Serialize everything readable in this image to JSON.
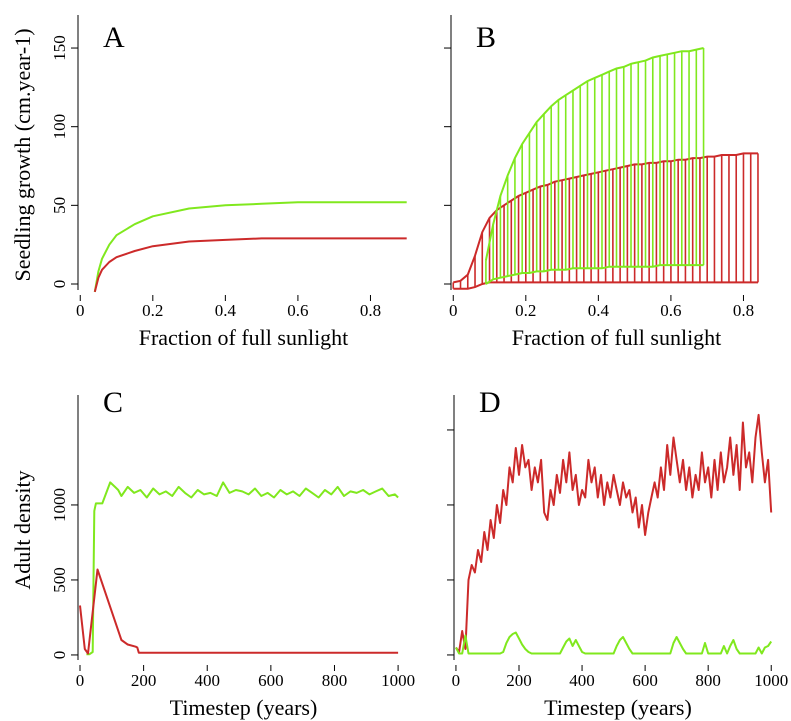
{
  "chart_data": [
    {
      "type": "line",
      "title": "A",
      "xlabel": "Fraction of full sunlight",
      "ylabel": "Seedling growth (cm.year-1)",
      "xlim": [
        -0.02,
        0.92
      ],
      "ylim": [
        -7,
        171
      ],
      "xticks": [
        0,
        0.2,
        0.4,
        0.6,
        0.8
      ],
      "yticks": [
        0,
        50,
        100,
        150
      ],
      "ytick_labels": true,
      "series": [
        {
          "color": "#80e81e",
          "x": [
            0.04,
            0.05,
            0.06,
            0.08,
            0.1,
            0.15,
            0.2,
            0.3,
            0.4,
            0.5,
            0.6,
            0.7,
            0.9
          ],
          "values": [
            -5,
            8,
            16,
            25,
            31,
            38,
            43,
            48,
            50,
            51,
            52,
            52,
            52
          ]
        },
        {
          "color": "#cc2a2a",
          "x": [
            0.04,
            0.05,
            0.06,
            0.08,
            0.1,
            0.15,
            0.2,
            0.3,
            0.4,
            0.5,
            0.6,
            0.7,
            0.9
          ],
          "values": [
            -5,
            4,
            9,
            14,
            17,
            21,
            24,
            27,
            28,
            29,
            29,
            29,
            29
          ]
        }
      ]
    },
    {
      "type": "hatched-band",
      "title": "B",
      "xlabel": "Fraction of full sunlight",
      "xlim": [
        -0.02,
        0.92
      ],
      "ylim": [
        -7,
        171
      ],
      "xticks": [
        0,
        0.2,
        0.4,
        0.6,
        0.8
      ],
      "yticks": [
        0,
        50,
        100,
        150
      ],
      "ytick_labels": false,
      "series": [
        {
          "color": "#cc2a2a",
          "x": [
            0,
            0.02,
            0.04,
            0.06,
            0.08,
            0.1,
            0.12,
            0.14,
            0.16,
            0.18,
            0.2,
            0.22,
            0.24,
            0.26,
            0.28,
            0.3,
            0.32,
            0.34,
            0.36,
            0.38,
            0.4,
            0.42,
            0.44,
            0.46,
            0.48,
            0.5,
            0.52,
            0.54,
            0.56,
            0.58,
            0.6,
            0.62,
            0.64,
            0.66,
            0.68,
            0.7,
            0.72,
            0.74,
            0.76,
            0.78,
            0.8,
            0.82,
            0.84
          ],
          "upper": [
            1,
            2,
            6,
            18,
            33,
            42,
            47,
            50,
            53,
            56,
            58,
            60,
            62,
            63,
            65,
            66,
            67,
            68,
            69,
            70,
            71,
            72,
            73,
            74,
            75,
            76,
            76,
            77,
            77,
            78,
            78,
            79,
            79,
            80,
            80,
            81,
            81,
            82,
            82,
            82,
            83,
            83,
            83
          ],
          "lower": [
            -3,
            -3,
            -3,
            -2,
            0,
            1,
            1,
            1,
            1,
            1,
            1,
            1,
            1,
            1,
            1,
            1,
            1,
            1,
            1,
            1,
            1,
            1,
            1,
            1,
            1,
            1,
            1,
            1,
            1,
            1,
            1,
            1,
            1,
            1,
            1,
            1,
            1,
            1,
            1,
            1,
            1,
            1,
            1
          ]
        },
        {
          "color": "#80e81e",
          "x": [
            0.09,
            0.11,
            0.13,
            0.15,
            0.17,
            0.19,
            0.21,
            0.23,
            0.25,
            0.27,
            0.29,
            0.31,
            0.33,
            0.35,
            0.37,
            0.39,
            0.41,
            0.43,
            0.45,
            0.47,
            0.49,
            0.51,
            0.53,
            0.55,
            0.57,
            0.59,
            0.61,
            0.63,
            0.65,
            0.67,
            0.69
          ],
          "upper": [
            15,
            38,
            56,
            69,
            80,
            89,
            96,
            103,
            108,
            113,
            117,
            120,
            123,
            126,
            129,
            131,
            133,
            135,
            137,
            138,
            140,
            141,
            142,
            144,
            145,
            146,
            147,
            148,
            148,
            149,
            150
          ],
          "lower": [
            0,
            3,
            4,
            5,
            6,
            7,
            7,
            8,
            8,
            9,
            9,
            9,
            10,
            10,
            10,
            10,
            10,
            11,
            11,
            11,
            11,
            11,
            11,
            11,
            12,
            12,
            12,
            12,
            12,
            12,
            12
          ]
        }
      ]
    },
    {
      "type": "line",
      "title": "C",
      "xlabel": "Timestep (years)",
      "ylabel": "Adult density",
      "xlim": [
        -22,
        1050
      ],
      "ylim": [
        -67,
        1733
      ],
      "xticks": [
        0,
        200,
        400,
        600,
        800,
        1000
      ],
      "yticks": [
        0,
        500,
        1000
      ],
      "ytick_labels": true,
      "series": [
        {
          "color": "#80e81e",
          "x": [
            20,
            30,
            40,
            45,
            50,
            70,
            95,
            110,
            120,
            130,
            150,
            170,
            190,
            210,
            230,
            250,
            270,
            290,
            310,
            330,
            350,
            370,
            390,
            410,
            430,
            450,
            470,
            490,
            510,
            530,
            550,
            570,
            590,
            610,
            630,
            650,
            670,
            690,
            710,
            730,
            750,
            770,
            790,
            810,
            830,
            850,
            870,
            890,
            910,
            930,
            950,
            970,
            990,
            1000
          ],
          "values": [
            5,
            5,
            20,
            960,
            1010,
            1010,
            1150,
            1120,
            1100,
            1060,
            1120,
            1080,
            1100,
            1050,
            1110,
            1070,
            1090,
            1060,
            1120,
            1080,
            1050,
            1100,
            1070,
            1080,
            1060,
            1150,
            1080,
            1100,
            1090,
            1070,
            1110,
            1060,
            1080,
            1050,
            1100,
            1070,
            1090,
            1060,
            1110,
            1080,
            1050,
            1100,
            1070,
            1120,
            1060,
            1090,
            1080,
            1100,
            1070,
            1090,
            1110,
            1060,
            1070,
            1050
          ]
        },
        {
          "color": "#cc2a2a",
          "x": [
            0,
            15,
            25,
            55,
            130,
            150,
            175,
            180,
            185,
            1000
          ],
          "values": [
            330,
            40,
            10,
            570,
            100,
            70,
            55,
            50,
            15,
            15
          ]
        }
      ]
    },
    {
      "type": "line",
      "title": "D",
      "xlabel": "Timestep (years)",
      "xlim": [
        -22,
        1050
      ],
      "ylim": [
        -67,
        1733
      ],
      "xticks": [
        0,
        200,
        400,
        600,
        800,
        1000
      ],
      "yticks": [
        0,
        500,
        1000,
        1500
      ],
      "ytick_labels": false,
      "x": [
        0,
        10,
        20,
        30,
        40,
        50,
        60,
        70,
        80,
        90,
        100,
        110,
        120,
        130,
        140,
        150,
        160,
        170,
        180,
        190,
        200,
        210,
        220,
        230,
        240,
        250,
        260,
        270,
        280,
        290,
        300,
        310,
        320,
        330,
        340,
        350,
        360,
        370,
        380,
        390,
        400,
        410,
        420,
        430,
        440,
        450,
        460,
        470,
        480,
        490,
        500,
        510,
        520,
        530,
        540,
        550,
        560,
        570,
        580,
        590,
        600,
        610,
        620,
        630,
        640,
        650,
        660,
        670,
        680,
        690,
        700,
        710,
        720,
        730,
        740,
        750,
        760,
        770,
        780,
        790,
        800,
        810,
        820,
        830,
        840,
        850,
        860,
        870,
        880,
        890,
        900,
        910,
        920,
        930,
        940,
        950,
        960,
        970,
        980,
        990,
        1000
      ],
      "series": [
        {
          "color": "#cc2a2a",
          "values": [
            50,
            20,
            160,
            40,
            500,
            600,
            550,
            700,
            620,
            820,
            700,
            900,
            780,
            1000,
            880,
            1100,
            1000,
            1250,
            1150,
            1380,
            1200,
            1400,
            1250,
            1300,
            1100,
            1250,
            1150,
            1300,
            950,
            900,
            1100,
            1000,
            1200,
            1080,
            1300,
            1150,
            1350,
            1100,
            1200,
            1000,
            1100,
            1050,
            1300,
            1150,
            1250,
            1050,
            1200,
            1000,
            1150,
            1050,
            1200,
            1100,
            1000,
            1150,
            1050,
            1100,
            950,
            1050,
            850,
            1000,
            800,
            950,
            1050,
            1150,
            1050,
            1250,
            1100,
            1400,
            1200,
            1450,
            1300,
            1150,
            1300,
            1100,
            1250,
            1050,
            1200,
            1100,
            1350,
            1150,
            1250,
            1050,
            1300,
            1100,
            1350,
            1150,
            1250,
            1450,
            1200,
            1400,
            1100,
            1550,
            1250,
            1350,
            1150,
            1450,
            1600,
            1350,
            1150,
            1300,
            950
          ]
        },
        {
          "color": "#80e81e",
          "values": [
            50,
            10,
            10,
            130,
            10,
            10,
            10,
            10,
            10,
            10,
            10,
            10,
            10,
            10,
            10,
            20,
            80,
            120,
            140,
            150,
            110,
            70,
            40,
            20,
            10,
            10,
            10,
            10,
            10,
            10,
            10,
            10,
            10,
            10,
            50,
            90,
            110,
            60,
            100,
            60,
            20,
            10,
            10,
            10,
            10,
            10,
            10,
            10,
            10,
            10,
            10,
            60,
            100,
            120,
            80,
            40,
            10,
            10,
            10,
            10,
            10,
            10,
            10,
            10,
            10,
            10,
            10,
            10,
            10,
            80,
            120,
            80,
            40,
            10,
            10,
            10,
            10,
            10,
            10,
            80,
            10,
            10,
            10,
            10,
            10,
            60,
            10,
            60,
            100,
            40,
            10,
            10,
            10,
            10,
            10,
            10,
            50,
            10,
            50,
            60,
            90
          ]
        }
      ]
    }
  ]
}
